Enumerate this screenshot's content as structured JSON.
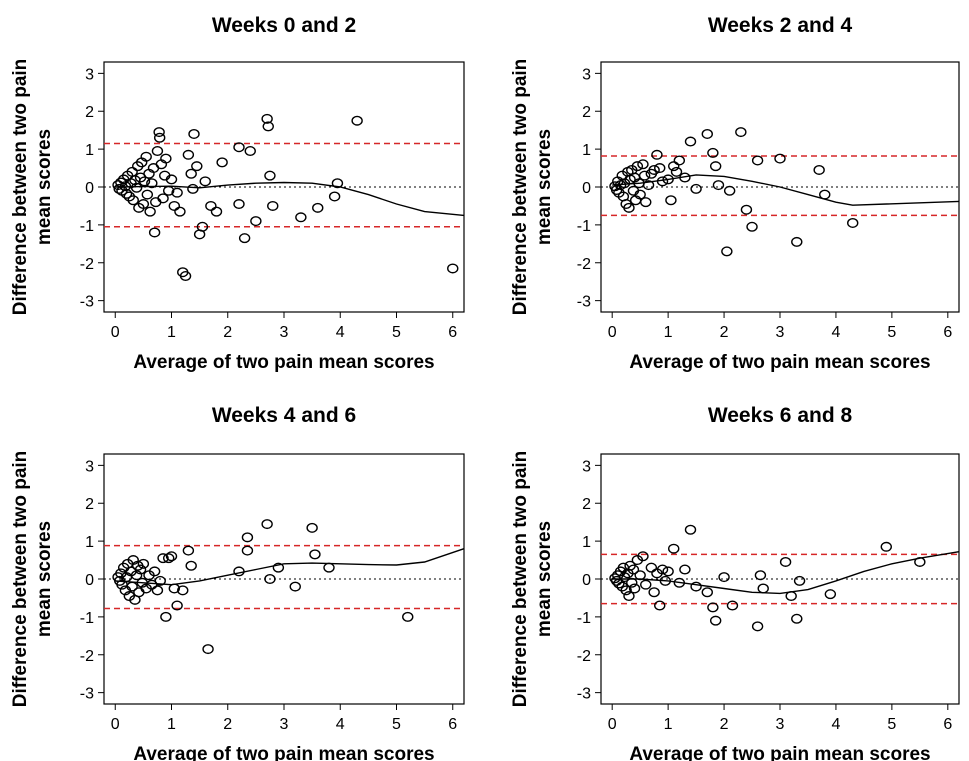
{
  "figure": {
    "line_color": "#000000",
    "limit_line_color": "#d62728",
    "zero_line_color": "#000000"
  },
  "chart_data": [
    {
      "type": "scatter",
      "title": "Weeks 0 and 2",
      "xlabel": "Average of two pain mean scores",
      "ylabel": "Difference between two pain mean scores",
      "xlim": [
        -0.2,
        6.2
      ],
      "ylim": [
        -3.3,
        3.3
      ],
      "xticks": [
        0,
        1,
        2,
        3,
        4,
        5,
        6
      ],
      "yticks": [
        -3,
        -2,
        -1,
        0,
        1,
        2,
        3
      ],
      "limits_of_agreement": [
        1.15,
        -1.05
      ],
      "zero_line": 0,
      "points": [
        [
          0.05,
          0.05
        ],
        [
          0.07,
          -0.05
        ],
        [
          0.1,
          0.12
        ],
        [
          0.12,
          -0.1
        ],
        [
          0.15,
          0.2
        ],
        [
          0.18,
          0.02
        ],
        [
          0.2,
          -0.18
        ],
        [
          0.22,
          0.3
        ],
        [
          0.25,
          -0.25
        ],
        [
          0.28,
          0.1
        ],
        [
          0.3,
          0.4
        ],
        [
          0.32,
          -0.35
        ],
        [
          0.35,
          0.18
        ],
        [
          0.38,
          -0.02
        ],
        [
          0.4,
          0.55
        ],
        [
          0.42,
          -0.55
        ],
        [
          0.45,
          0.25
        ],
        [
          0.47,
          0.65
        ],
        [
          0.5,
          -0.45
        ],
        [
          0.52,
          0.15
        ],
        [
          0.55,
          0.8
        ],
        [
          0.57,
          -0.2
        ],
        [
          0.6,
          0.35
        ],
        [
          0.62,
          -0.65
        ],
        [
          0.65,
          0.1
        ],
        [
          0.68,
          0.5
        ],
        [
          0.7,
          -1.2
        ],
        [
          0.72,
          -0.4
        ],
        [
          0.75,
          0.95
        ],
        [
          0.78,
          1.45
        ],
        [
          0.79,
          1.3
        ],
        [
          0.82,
          0.6
        ],
        [
          0.85,
          -0.3
        ],
        [
          0.88,
          0.3
        ],
        [
          0.9,
          0.75
        ],
        [
          0.95,
          -0.1
        ],
        [
          1.0,
          0.2
        ],
        [
          1.05,
          -0.5
        ],
        [
          1.1,
          -0.15
        ],
        [
          1.15,
          -0.65
        ],
        [
          1.2,
          -2.25
        ],
        [
          1.25,
          -2.35
        ],
        [
          1.3,
          0.85
        ],
        [
          1.35,
          0.35
        ],
        [
          1.38,
          -0.05
        ],
        [
          1.4,
          1.4
        ],
        [
          1.45,
          0.55
        ],
        [
          1.5,
          -1.25
        ],
        [
          1.55,
          -1.05
        ],
        [
          1.6,
          0.15
        ],
        [
          1.7,
          -0.5
        ],
        [
          1.8,
          -0.65
        ],
        [
          1.9,
          0.65
        ],
        [
          2.2,
          -0.45
        ],
        [
          2.2,
          1.05
        ],
        [
          2.3,
          -1.35
        ],
        [
          2.4,
          0.95
        ],
        [
          2.5,
          -0.9
        ],
        [
          2.7,
          1.8
        ],
        [
          2.72,
          1.6
        ],
        [
          2.75,
          0.3
        ],
        [
          2.8,
          -0.5
        ],
        [
          3.3,
          -0.8
        ],
        [
          3.6,
          -0.55
        ],
        [
          3.9,
          -0.25
        ],
        [
          3.95,
          0.1
        ],
        [
          4.3,
          1.75
        ],
        [
          6.0,
          -2.15
        ]
      ],
      "fit_line": [
        [
          0.0,
          0.0
        ],
        [
          0.5,
          0.01
        ],
        [
          1.0,
          0.02
        ],
        [
          1.5,
          -0.02
        ],
        [
          2.0,
          0.05
        ],
        [
          2.5,
          0.1
        ],
        [
          3.0,
          0.12
        ],
        [
          3.5,
          0.1
        ],
        [
          4.0,
          0.0
        ],
        [
          4.5,
          -0.2
        ],
        [
          5.0,
          -0.45
        ],
        [
          5.5,
          -0.65
        ],
        [
          6.2,
          -0.75
        ]
      ]
    },
    {
      "type": "scatter",
      "title": "Weeks 2 and 4",
      "xlabel": "Average of two pain mean scores",
      "ylabel": "Difference between two pain mean scores",
      "xlim": [
        -0.2,
        6.2
      ],
      "ylim": [
        -3.3,
        3.3
      ],
      "xticks": [
        0,
        1,
        2,
        3,
        4,
        5,
        6
      ],
      "yticks": [
        -3,
        -2,
        -1,
        0,
        1,
        2,
        3
      ],
      "limits_of_agreement": [
        0.82,
        -0.75
      ],
      "zero_line": 0,
      "points": [
        [
          0.05,
          0.02
        ],
        [
          0.08,
          -0.08
        ],
        [
          0.1,
          0.15
        ],
        [
          0.12,
          -0.15
        ],
        [
          0.15,
          0.05
        ],
        [
          0.18,
          0.3
        ],
        [
          0.2,
          -0.25
        ],
        [
          0.22,
          0.1
        ],
        [
          0.25,
          -0.45
        ],
        [
          0.28,
          0.4
        ],
        [
          0.3,
          -0.55
        ],
        [
          0.32,
          0.2
        ],
        [
          0.35,
          0.45
        ],
        [
          0.38,
          -0.1
        ],
        [
          0.4,
          0.25
        ],
        [
          0.42,
          -0.35
        ],
        [
          0.45,
          0.55
        ],
        [
          0.48,
          0.1
        ],
        [
          0.5,
          -0.2
        ],
        [
          0.55,
          0.6
        ],
        [
          0.58,
          0.3
        ],
        [
          0.6,
          -0.4
        ],
        [
          0.65,
          0.05
        ],
        [
          0.7,
          0.35
        ],
        [
          0.75,
          0.45
        ],
        [
          0.8,
          0.85
        ],
        [
          0.85,
          0.5
        ],
        [
          0.9,
          0.15
        ],
        [
          1.0,
          0.2
        ],
        [
          1.05,
          -0.35
        ],
        [
          1.1,
          0.55
        ],
        [
          1.15,
          0.4
        ],
        [
          1.2,
          0.7
        ],
        [
          1.3,
          0.25
        ],
        [
          1.4,
          1.2
        ],
        [
          1.5,
          -0.05
        ],
        [
          1.7,
          1.4
        ],
        [
          1.8,
          0.9
        ],
        [
          1.85,
          0.55
        ],
        [
          1.9,
          0.05
        ],
        [
          2.05,
          -1.7
        ],
        [
          2.1,
          -0.1
        ],
        [
          2.3,
          1.45
        ],
        [
          2.4,
          -0.6
        ],
        [
          2.5,
          -1.05
        ],
        [
          2.6,
          0.7
        ],
        [
          3.0,
          0.75
        ],
        [
          3.3,
          -1.45
        ],
        [
          3.7,
          0.45
        ],
        [
          3.8,
          -0.2
        ],
        [
          4.3,
          -0.95
        ]
      ],
      "fit_line": [
        [
          0.0,
          0.05
        ],
        [
          0.5,
          0.1
        ],
        [
          1.0,
          0.2
        ],
        [
          1.5,
          0.32
        ],
        [
          2.0,
          0.28
        ],
        [
          2.5,
          0.15
        ],
        [
          3.0,
          0.0
        ],
        [
          3.5,
          -0.2
        ],
        [
          4.0,
          -0.4
        ],
        [
          4.3,
          -0.48
        ],
        [
          6.2,
          -0.38
        ]
      ]
    },
    {
      "type": "scatter",
      "title": "Weeks 4 and 6",
      "xlabel": "Average of two pain mean scores",
      "ylabel": "Difference between two pain mean scores",
      "xlim": [
        -0.2,
        6.2
      ],
      "ylim": [
        -3.3,
        3.3
      ],
      "xticks": [
        0,
        1,
        2,
        3,
        4,
        5,
        6
      ],
      "yticks": [
        -3,
        -2,
        -1,
        0,
        1,
        2,
        3
      ],
      "limits_of_agreement": [
        0.88,
        -0.78
      ],
      "zero_line": 0,
      "points": [
        [
          0.05,
          0.05
        ],
        [
          0.08,
          -0.05
        ],
        [
          0.1,
          0.15
        ],
        [
          0.12,
          -0.15
        ],
        [
          0.15,
          0.3
        ],
        [
          0.18,
          -0.3
        ],
        [
          0.2,
          0.05
        ],
        [
          0.22,
          0.4
        ],
        [
          0.25,
          -0.45
        ],
        [
          0.28,
          0.2
        ],
        [
          0.3,
          -0.2
        ],
        [
          0.32,
          0.5
        ],
        [
          0.35,
          -0.55
        ],
        [
          0.38,
          0.1
        ],
        [
          0.4,
          0.35
        ],
        [
          0.42,
          -0.35
        ],
        [
          0.45,
          0.25
        ],
        [
          0.48,
          -0.1
        ],
        [
          0.5,
          0.4
        ],
        [
          0.55,
          -0.25
        ],
        [
          0.6,
          0.1
        ],
        [
          0.65,
          -0.15
        ],
        [
          0.7,
          0.2
        ],
        [
          0.75,
          -0.3
        ],
        [
          0.8,
          -0.05
        ],
        [
          0.85,
          0.55
        ],
        [
          0.9,
          -1.0
        ],
        [
          0.95,
          0.55
        ],
        [
          1.0,
          0.6
        ],
        [
          1.05,
          -0.25
        ],
        [
          1.1,
          -0.7
        ],
        [
          1.2,
          -0.3
        ],
        [
          1.3,
          0.75
        ],
        [
          1.35,
          0.35
        ],
        [
          1.65,
          -1.85
        ],
        [
          2.2,
          0.2
        ],
        [
          2.35,
          1.1
        ],
        [
          2.35,
          0.75
        ],
        [
          2.7,
          1.45
        ],
        [
          2.75,
          0.0
        ],
        [
          2.9,
          0.3
        ],
        [
          3.2,
          -0.2
        ],
        [
          3.5,
          1.35
        ],
        [
          3.55,
          0.65
        ],
        [
          3.8,
          0.3
        ],
        [
          5.2,
          -1.0
        ]
      ],
      "fit_line": [
        [
          0.0,
          -0.05
        ],
        [
          0.5,
          -0.1
        ],
        [
          1.0,
          -0.15
        ],
        [
          1.5,
          -0.05
        ],
        [
          2.0,
          0.1
        ],
        [
          2.5,
          0.25
        ],
        [
          3.0,
          0.4
        ],
        [
          3.5,
          0.42
        ],
        [
          4.0,
          0.4
        ],
        [
          4.5,
          0.38
        ],
        [
          5.0,
          0.37
        ],
        [
          5.5,
          0.45
        ],
        [
          6.2,
          0.8
        ]
      ]
    },
    {
      "type": "scatter",
      "title": "Weeks 6 and 8",
      "xlabel": "Average of two pain mean scores",
      "ylabel": "Difference between two pain mean scores",
      "xlim": [
        -0.2,
        6.2
      ],
      "ylim": [
        -3.3,
        3.3
      ],
      "xticks": [
        0,
        1,
        2,
        3,
        4,
        5,
        6
      ],
      "yticks": [
        -3,
        -2,
        -1,
        0,
        1,
        2,
        3
      ],
      "limits_of_agreement": [
        0.65,
        -0.65
      ],
      "zero_line": 0,
      "points": [
        [
          0.05,
          0.02
        ],
        [
          0.08,
          -0.05
        ],
        [
          0.1,
          0.1
        ],
        [
          0.12,
          -0.12
        ],
        [
          0.15,
          0.2
        ],
        [
          0.18,
          -0.2
        ],
        [
          0.2,
          0.3
        ],
        [
          0.22,
          0.05
        ],
        [
          0.25,
          -0.3
        ],
        [
          0.28,
          0.15
        ],
        [
          0.3,
          -0.45
        ],
        [
          0.32,
          0.35
        ],
        [
          0.35,
          -0.1
        ],
        [
          0.38,
          0.25
        ],
        [
          0.4,
          -0.25
        ],
        [
          0.45,
          0.5
        ],
        [
          0.5,
          0.1
        ],
        [
          0.55,
          0.6
        ],
        [
          0.6,
          -0.15
        ],
        [
          0.7,
          0.3
        ],
        [
          0.75,
          -0.35
        ],
        [
          0.8,
          0.15
        ],
        [
          0.85,
          -0.7
        ],
        [
          0.9,
          0.25
        ],
        [
          0.95,
          -0.05
        ],
        [
          1.0,
          0.2
        ],
        [
          1.1,
          0.8
        ],
        [
          1.2,
          -0.1
        ],
        [
          1.3,
          0.25
        ],
        [
          1.4,
          1.3
        ],
        [
          1.5,
          -0.2
        ],
        [
          1.7,
          -0.35
        ],
        [
          1.8,
          -0.75
        ],
        [
          1.85,
          -1.1
        ],
        [
          2.0,
          0.05
        ],
        [
          2.15,
          -0.7
        ],
        [
          2.6,
          -1.25
        ],
        [
          2.65,
          0.1
        ],
        [
          2.7,
          -0.25
        ],
        [
          3.1,
          0.45
        ],
        [
          3.2,
          -0.45
        ],
        [
          3.3,
          -1.05
        ],
        [
          3.35,
          -0.05
        ],
        [
          3.9,
          -0.4
        ],
        [
          4.9,
          0.85
        ],
        [
          5.5,
          0.45
        ]
      ],
      "fit_line": [
        [
          0.0,
          0.0
        ],
        [
          0.5,
          0.0
        ],
        [
          1.0,
          -0.05
        ],
        [
          1.5,
          -0.15
        ],
        [
          2.0,
          -0.25
        ],
        [
          2.5,
          -0.35
        ],
        [
          3.0,
          -0.38
        ],
        [
          3.5,
          -0.28
        ],
        [
          4.0,
          -0.05
        ],
        [
          4.5,
          0.2
        ],
        [
          5.0,
          0.4
        ],
        [
          5.5,
          0.55
        ],
        [
          6.2,
          0.72
        ]
      ]
    }
  ]
}
